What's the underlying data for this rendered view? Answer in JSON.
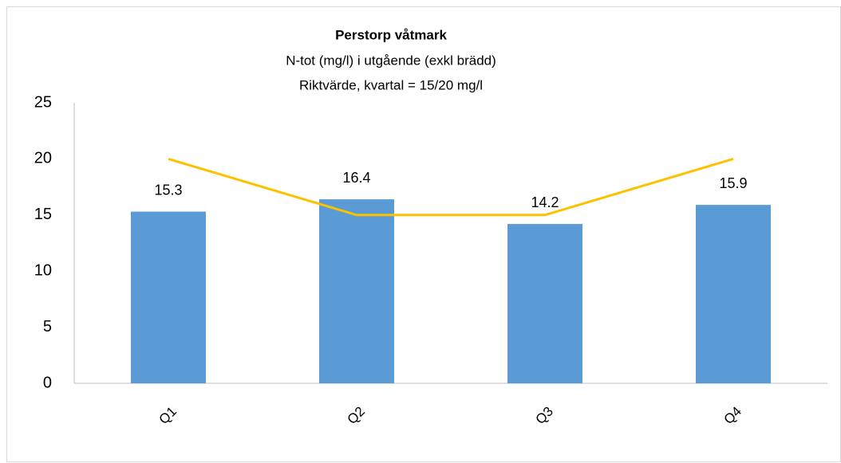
{
  "chart_data": {
    "type": "bar",
    "title": "Perstorp våtmark",
    "subtitle": [
      "N-tot (mg/l) i utgående (exkl brädd)",
      "Riktvärde, kvartal = 15/20 mg/l"
    ],
    "categories": [
      "Q1",
      "Q2",
      "Q3",
      "Q4"
    ],
    "series": [
      {
        "type": "bar",
        "color": "#5b9bd5",
        "values": [
          15.3,
          16.4,
          14.2,
          15.9
        ]
      },
      {
        "type": "line",
        "color": "#ffc000",
        "values": [
          20,
          15,
          15,
          20
        ]
      }
    ],
    "ylim": [
      0,
      25
    ],
    "yticks": [
      0,
      5,
      10,
      15,
      20,
      25
    ],
    "grid": false
  }
}
